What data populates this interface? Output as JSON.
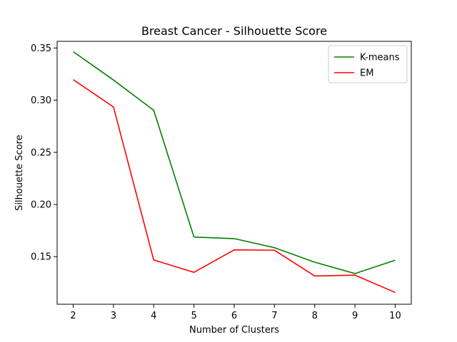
{
  "chart_data": {
    "type": "line",
    "title": "Breast Cancer - Silhouette Score",
    "xlabel": "Number of Clusters",
    "ylabel": "Silhouette Score",
    "x": [
      2,
      3,
      4,
      5,
      6,
      7,
      8,
      9,
      10
    ],
    "xticks": [
      "2",
      "3",
      "4",
      "5",
      "6",
      "7",
      "8",
      "9",
      "10"
    ],
    "yticks": [
      0.15,
      0.2,
      0.25,
      0.3,
      0.35
    ],
    "ytick_labels": [
      "0.15",
      "0.20",
      "0.25",
      "0.30",
      "0.35"
    ],
    "xlim": [
      1.6,
      10.4
    ],
    "ylim": [
      0.1044,
      0.3564
    ],
    "grid": false,
    "legend_position": "top-right",
    "series": [
      {
        "name": "K-means",
        "color": "#008000",
        "values": [
          0.3465,
          0.3193,
          0.2903,
          0.1688,
          0.1673,
          0.1586,
          0.1447,
          0.1338,
          0.1466
        ]
      },
      {
        "name": "EM",
        "color": "#ff0000",
        "values": [
          0.3197,
          0.2935,
          0.1468,
          0.135,
          0.1565,
          0.1562,
          0.1315,
          0.1323,
          0.1157
        ]
      }
    ]
  }
}
